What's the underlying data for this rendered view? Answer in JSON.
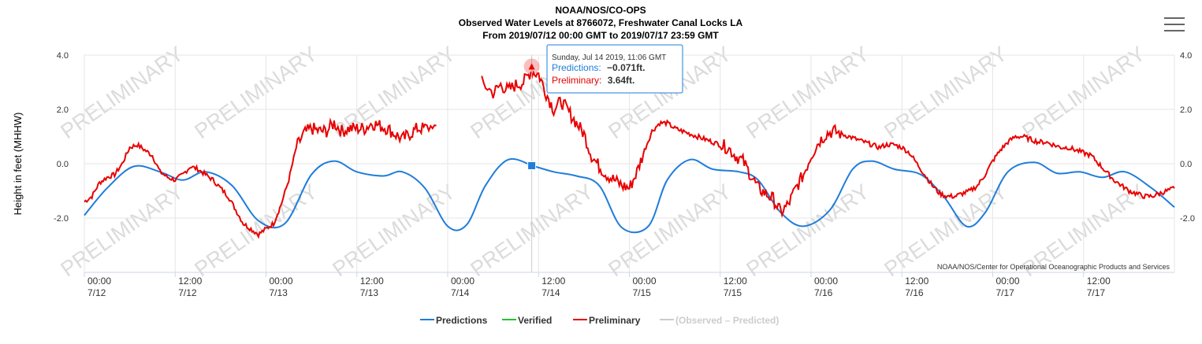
{
  "header": {
    "title": "NOAA/NOS/CO-OPS",
    "subtitle": "Observed Water Levels at 8766072, Freshwater Canal Locks LA",
    "date_range": "From 2019/07/12 00:00 GMT to 2019/07/17 23:59 GMT"
  },
  "credit": "NOAA/NOS/Center for Operational Oceanographic Products and Services",
  "watermark": "PRELIMINARY",
  "menu_icon": "hamburger-menu-icon",
  "tooltip": {
    "date": "Sunday, Jul 14 2019, 11:06 GMT",
    "pred_label": "Predictions:",
    "pred_value": "−0.071ft.",
    "prelim_label": "Preliminary:",
    "prelim_value": "3.64ft."
  },
  "chart_data": {
    "type": "line",
    "title": "NOAA/NOS/CO-OPS",
    "ylabel": "Height in feet (MHHW)",
    "ylim": [
      -4.0,
      4.0
    ],
    "xlim": [
      0,
      144
    ],
    "x_unit": "hours from 2019/07/12 00:00 GMT",
    "y_ticks": [
      "4.0",
      "2.0",
      "0.0",
      "-2.0"
    ],
    "y_tick_values": [
      4,
      2,
      0,
      -2
    ],
    "x_tick_hours": [
      0,
      12,
      24,
      36,
      48,
      60,
      72,
      84,
      96,
      108,
      120,
      132
    ],
    "x_tick_labels": [
      [
        "00:00",
        "7/12"
      ],
      [
        "12:00",
        "7/12"
      ],
      [
        "00:00",
        "7/13"
      ],
      [
        "12:00",
        "7/13"
      ],
      [
        "00:00",
        "7/14"
      ],
      [
        "12:00",
        "7/14"
      ],
      [
        "00:00",
        "7/15"
      ],
      [
        "12:00",
        "7/15"
      ],
      [
        "00:00",
        "7/16"
      ],
      [
        "12:00",
        "7/16"
      ],
      [
        "00:00",
        "7/17"
      ],
      [
        "12:00",
        "7/17"
      ]
    ],
    "grid": true,
    "legend_position": "bottom-center",
    "series": [
      {
        "name": "Predictions",
        "color": "#1f7ddb",
        "x": [
          0,
          3,
          6.5,
          10,
          13,
          16,
          19.5,
          23,
          26.5,
          30,
          33,
          36,
          39.5,
          42,
          45,
          48,
          50.5,
          53,
          56,
          59.5,
          62,
          65,
          68,
          71,
          74.5,
          77,
          80,
          83,
          86.5,
          89,
          92,
          95,
          98.5,
          101.5,
          104,
          107,
          110.5,
          113.5,
          116.5,
          119,
          122,
          125.5,
          128.5,
          131.5,
          134.5,
          137.5,
          141,
          144
        ],
        "values": [
          -1.9,
          -0.9,
          -0.1,
          -0.3,
          -0.6,
          -0.3,
          -0.8,
          -2.1,
          -2.2,
          -0.4,
          0.1,
          -0.3,
          -0.45,
          -0.3,
          -0.9,
          -2.3,
          -2.25,
          -0.8,
          0.15,
          -0.1,
          -0.3,
          -0.45,
          -0.8,
          -2.35,
          -2.3,
          -0.6,
          0.15,
          -0.2,
          -0.3,
          -0.6,
          -1.8,
          -2.3,
          -1.7,
          -0.2,
          0.1,
          -0.2,
          -0.4,
          -1.2,
          -2.3,
          -1.8,
          -0.3,
          0.05,
          -0.35,
          -0.3,
          -0.5,
          -0.3,
          -0.9,
          -1.6
        ]
      },
      {
        "name": "Verified",
        "color": "#22c32e",
        "x": [],
        "values": []
      },
      {
        "name": "Preliminary",
        "color": "#e80000",
        "segments": [
          {
            "x": [
              0,
              1,
              2,
              3,
              4,
              5,
              6,
              7,
              8,
              9,
              10,
              11,
              12,
              13,
              14,
              15,
              16,
              17,
              18,
              19,
              20,
              21,
              22,
              23,
              24,
              25,
              26,
              27,
              28,
              29,
              30,
              31,
              32,
              33,
              34,
              35,
              36,
              37,
              38,
              39,
              40,
              41,
              42,
              43,
              44,
              45,
              46.5
            ],
            "values": [
              -1.4,
              -1.2,
              -0.7,
              -0.5,
              -0.4,
              0.0,
              0.6,
              0.7,
              0.5,
              0.3,
              -0.3,
              -0.5,
              -0.6,
              -0.4,
              -0.1,
              -0.2,
              -0.4,
              -0.6,
              -0.9,
              -1.2,
              -1.7,
              -2.2,
              -2.4,
              -2.6,
              -2.4,
              -2.2,
              -1.5,
              -0.6,
              0.6,
              1.1,
              1.3,
              1.2,
              1.2,
              1.5,
              1.2,
              1.3,
              1.3,
              1.3,
              1.5,
              1.4,
              1.3,
              1.1,
              0.9,
              1.1,
              1.3,
              1.3,
              1.4
            ]
          },
          {
            "x": [
              52.5,
              54,
              55,
              56,
              57,
              58,
              59,
              60,
              61,
              62,
              63,
              64,
              65,
              66,
              67,
              68,
              69,
              70,
              71,
              72,
              73,
              74,
              75,
              76,
              77,
              78,
              79,
              80,
              81,
              82,
              83,
              84,
              85,
              86,
              87,
              88,
              89,
              90,
              91,
              92,
              93,
              94,
              95,
              96,
              97,
              98,
              99,
              100,
              101,
              102,
              103,
              104,
              105,
              106,
              107,
              108,
              109,
              110,
              111,
              112,
              113,
              114,
              115,
              116,
              117,
              118,
              119,
              120,
              121,
              122,
              123,
              124,
              125,
              126,
              127,
              128,
              129,
              130,
              131,
              132,
              133,
              134,
              135,
              136,
              137,
              138,
              139,
              140,
              141,
              142,
              143,
              144
            ],
            "values": [
              3.0,
              2.6,
              2.9,
              2.7,
              2.9,
              3.0,
              3.4,
              3.3,
              2.6,
              2.0,
              2.3,
              1.9,
              1.5,
              1.1,
              0.3,
              -0.1,
              -0.4,
              -0.6,
              -0.8,
              -0.9,
              -0.3,
              0.5,
              1.2,
              1.5,
              1.5,
              1.3,
              1.2,
              1.1,
              1.0,
              0.9,
              0.8,
              0.7,
              0.6,
              0.3,
              0.1,
              -0.4,
              -0.9,
              -1.1,
              -1.3,
              -1.8,
              -1.5,
              -0.9,
              -0.4,
              0.3,
              0.8,
              1.1,
              1.2,
              1.1,
              1.0,
              0.9,
              0.8,
              0.7,
              0.6,
              0.7,
              0.7,
              0.6,
              0.4,
              0.0,
              -0.4,
              -0.8,
              -1.1,
              -1.2,
              -1.2,
              -1.1,
              -1.0,
              -0.8,
              -0.4,
              0.1,
              0.5,
              0.8,
              1.0,
              1.0,
              0.9,
              0.8,
              0.8,
              0.7,
              0.6,
              0.6,
              0.5,
              0.4,
              0.3,
              0.0,
              -0.3,
              -0.6,
              -0.8,
              -1.0,
              -1.1,
              -1.2,
              -1.2,
              -1.1,
              -1.0,
              -0.9
            ]
          }
        ]
      },
      {
        "name": "(Observed – Predicted)",
        "color": "#cccccc",
        "hidden": true,
        "x": [],
        "values": []
      }
    ],
    "annotations": [
      {
        "type": "marker",
        "series": "Preliminary",
        "x": 59.1,
        "y": 3.64
      },
      {
        "type": "marker",
        "series": "Predictions",
        "x": 59.1,
        "y": -0.071
      }
    ]
  }
}
